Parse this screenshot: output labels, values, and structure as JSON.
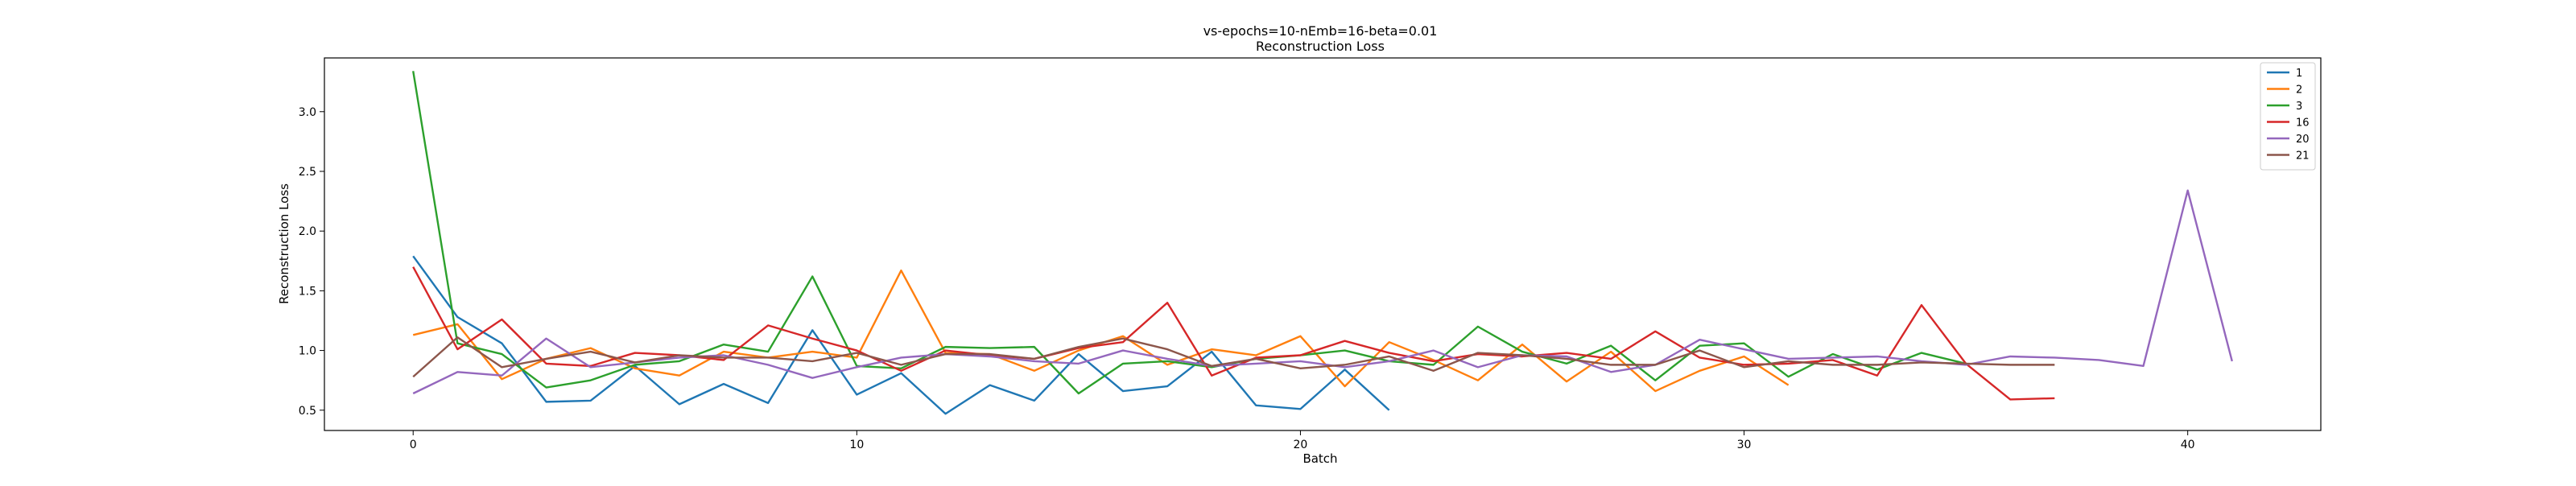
{
  "chart_data": {
    "type": "line",
    "title": "vs-epochs=10-nEmb=16-beta=0.01",
    "subtitle": "Reconstruction Loss",
    "xlabel": "Batch",
    "ylabel": "Reconstruction Loss",
    "xlim": [
      -2,
      43
    ],
    "ylim": [
      0.33,
      3.45
    ],
    "xticks": [
      0,
      10,
      20,
      30,
      40
    ],
    "yticks": [
      0.5,
      1.0,
      1.5,
      2.0,
      2.5,
      3.0
    ],
    "ytick_labels": [
      "0.5",
      "1.0",
      "1.5",
      "2.0",
      "2.5",
      "3.0"
    ],
    "grid": false,
    "legend_position": "top-right",
    "series": [
      {
        "name": "1",
        "color": "#1f77b4",
        "values": [
          1.79,
          1.28,
          1.06,
          0.57,
          0.58,
          0.87,
          0.55,
          0.72,
          0.56,
          1.17,
          0.63,
          0.81,
          0.47,
          0.71,
          0.58,
          0.97,
          0.66,
          0.7,
          0.99,
          0.54,
          0.51,
          0.84,
          0.5
        ]
      },
      {
        "name": "2",
        "color": "#ff7f0e",
        "values": [
          1.13,
          1.22,
          0.76,
          0.93,
          1.02,
          0.85,
          0.79,
          0.99,
          0.94,
          0.99,
          0.94,
          1.67,
          0.98,
          0.97,
          0.83,
          1.0,
          1.12,
          0.88,
          1.01,
          0.96,
          1.12,
          0.7,
          1.07,
          0.92,
          0.75,
          1.05,
          0.74,
          0.99,
          0.66,
          0.83,
          0.95,
          0.71
        ]
      },
      {
        "name": "3",
        "color": "#2ca02c",
        "values": [
          3.34,
          1.06,
          0.97,
          0.69,
          0.75,
          0.88,
          0.91,
          1.05,
          0.99,
          1.62,
          0.87,
          0.85,
          1.03,
          1.02,
          1.03,
          0.64,
          0.89,
          0.91,
          0.86,
          0.93,
          0.96,
          1.0,
          0.91,
          0.88,
          1.2,
          0.99,
          0.89,
          1.04,
          0.75,
          1.04,
          1.06,
          0.78,
          0.97,
          0.84,
          0.98,
          0.89
        ]
      },
      {
        "name": "16",
        "color": "#d62728",
        "values": [
          1.7,
          1.01,
          1.26,
          0.89,
          0.87,
          0.98,
          0.96,
          0.92,
          1.21,
          1.1,
          1.0,
          0.83,
          1.0,
          0.96,
          0.93,
          1.02,
          1.07,
          1.4,
          0.79,
          0.94,
          0.96,
          1.08,
          0.98,
          0.91,
          0.97,
          0.95,
          0.98,
          0.93,
          1.16,
          0.94,
          0.88,
          0.89,
          0.92,
          0.79,
          1.38,
          0.89,
          0.59,
          0.6
        ]
      },
      {
        "name": "20",
        "color": "#9467bd",
        "values": [
          0.64,
          0.82,
          0.79,
          1.1,
          0.86,
          0.9,
          0.94,
          0.96,
          0.88,
          0.77,
          0.86,
          0.94,
          0.97,
          0.95,
          0.91,
          0.89,
          1.0,
          0.93,
          0.87,
          0.89,
          0.91,
          0.86,
          0.91,
          1.0,
          0.86,
          0.96,
          0.95,
          0.82,
          0.88,
          1.09,
          1.01,
          0.93,
          0.94,
          0.95,
          0.91,
          0.88,
          0.95,
          0.94,
          0.92,
          0.87,
          2.34,
          0.91
        ]
      },
      {
        "name": "21",
        "color": "#8c564b",
        "values": [
          0.78,
          1.11,
          0.86,
          0.93,
          0.99,
          0.9,
          0.96,
          0.94,
          0.94,
          0.91,
          0.98,
          0.88,
          0.97,
          0.97,
          0.93,
          1.03,
          1.1,
          1.01,
          0.87,
          0.93,
          0.85,
          0.88,
          0.95,
          0.83,
          0.98,
          0.96,
          0.93,
          0.88,
          0.88,
          1.0,
          0.86,
          0.91,
          0.88,
          0.88,
          0.9,
          0.89,
          0.88,
          0.88
        ]
      }
    ]
  }
}
